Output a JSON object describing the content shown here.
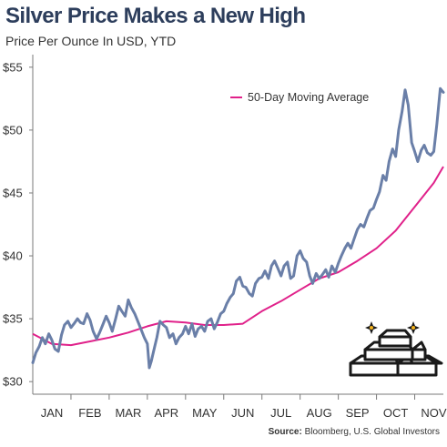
{
  "colors": {
    "price": "#6a7fa8",
    "ma": "#e0218a",
    "axis": "#7a7a7a",
    "title": "#2d3e5c"
  },
  "chart_data": {
    "type": "line",
    "title": "Silver Price Makes a New High",
    "subtitle": "Price Per Ounce In USD, YTD",
    "source_label": "Source:",
    "source_text": "Bloomberg, U.S. Global Investors",
    "ylim": [
      29,
      56
    ],
    "y_ticks": [
      30,
      35,
      40,
      45,
      50,
      55
    ],
    "y_tick_labels": [
      "$30",
      "$35",
      "$40",
      "$45",
      "$50",
      "$55"
    ],
    "x_range": [
      0,
      10.75
    ],
    "x_ticks": [
      0.5,
      1.5,
      2.5,
      3.5,
      4.5,
      5.5,
      6.5,
      7.5,
      8.5,
      9.5,
      10.5
    ],
    "x_tick_labels": [
      "JAN",
      "FEB",
      "MAR",
      "APR",
      "MAY",
      "JUN",
      "JUL",
      "AUG",
      "SEP",
      "OCT",
      "NOV"
    ],
    "legend_position": "top-right",
    "icon": "silver-bars-icon",
    "series": [
      {
        "name": "50-Day Moving Average",
        "x": [
          0,
          0.5,
          1,
          1.5,
          2,
          2.5,
          3,
          3.5,
          4,
          4.5,
          5,
          5.5,
          6,
          6.5,
          7,
          7.5,
          8,
          8.5,
          9,
          9.5,
          10,
          10.5,
          10.75
        ],
        "values": [
          33.8,
          33.0,
          32.9,
          33.2,
          33.5,
          33.9,
          34.4,
          34.8,
          34.7,
          34.5,
          34.5,
          34.6,
          35.6,
          36.4,
          37.3,
          38.2,
          38.7,
          39.6,
          40.6,
          42.0,
          43.9,
          45.8,
          47.1
        ]
      },
      {
        "name": "Silver Price",
        "x": [
          0,
          0.08,
          0.17,
          0.25,
          0.33,
          0.42,
          0.5,
          0.58,
          0.67,
          0.75,
          0.83,
          0.92,
          1.0,
          1.08,
          1.17,
          1.25,
          1.33,
          1.42,
          1.5,
          1.58,
          1.67,
          1.75,
          1.83,
          1.92,
          2.0,
          2.08,
          2.17,
          2.25,
          2.33,
          2.42,
          2.5,
          2.58,
          2.67,
          2.75,
          2.83,
          2.92,
          3.0,
          3.05,
          3.1,
          3.17,
          3.25,
          3.33,
          3.42,
          3.5,
          3.58,
          3.67,
          3.75,
          3.83,
          3.92,
          4.0,
          4.08,
          4.17,
          4.25,
          4.33,
          4.42,
          4.5,
          4.58,
          4.67,
          4.75,
          4.83,
          4.92,
          5.0,
          5.08,
          5.17,
          5.25,
          5.33,
          5.42,
          5.5,
          5.58,
          5.67,
          5.75,
          5.83,
          5.92,
          6.0,
          6.08,
          6.17,
          6.25,
          6.33,
          6.42,
          6.5,
          6.58,
          6.67,
          6.75,
          6.83,
          6.92,
          7.0,
          7.08,
          7.17,
          7.25,
          7.33,
          7.42,
          7.5,
          7.58,
          7.67,
          7.75,
          7.83,
          7.92,
          8.0,
          8.08,
          8.17,
          8.25,
          8.33,
          8.42,
          8.5,
          8.58,
          8.67,
          8.75,
          8.83,
          8.92,
          9.0,
          9.08,
          9.17,
          9.25,
          9.33,
          9.42,
          9.5,
          9.58,
          9.67,
          9.75,
          9.83,
          9.92,
          10.0,
          10.08,
          10.17,
          10.25,
          10.33,
          10.42,
          10.5,
          10.58,
          10.67,
          10.75
        ],
        "values": [
          31.5,
          32.3,
          32.8,
          33.5,
          33.0,
          33.8,
          33.3,
          32.6,
          32.4,
          33.7,
          34.5,
          34.8,
          34.3,
          34.6,
          35.0,
          34.7,
          34.6,
          35.4,
          34.9,
          34.0,
          33.4,
          33.9,
          34.5,
          35.2,
          34.7,
          34.0,
          35.0,
          36.0,
          35.6,
          35.2,
          36.5,
          35.9,
          35.4,
          34.8,
          34.2,
          33.5,
          33.0,
          31.1,
          31.6,
          32.5,
          33.5,
          34.8,
          34.5,
          34.3,
          33.5,
          33.8,
          33.0,
          33.5,
          33.8,
          34.4,
          33.8,
          34.6,
          33.6,
          34.2,
          34.4,
          34.0,
          34.8,
          35.0,
          34.2,
          34.7,
          35.4,
          35.6,
          36.2,
          36.7,
          37.0,
          38.0,
          38.3,
          37.6,
          37.5,
          37.0,
          36.8,
          37.8,
          38.2,
          38.3,
          38.8,
          38.2,
          39.2,
          39.6,
          39.0,
          38.4,
          39.2,
          39.5,
          38.2,
          38.4,
          40.0,
          40.4,
          39.8,
          39.5,
          38.4,
          37.8,
          38.6,
          38.2,
          38.5,
          38.9,
          38.3,
          39.2,
          38.7,
          39.4,
          40.0,
          40.6,
          41.0,
          40.6,
          41.4,
          42.1,
          42.5,
          42.3,
          43.0,
          43.6,
          43.8,
          44.5,
          45.1,
          46.4,
          46.0,
          47.5,
          48.5,
          47.9,
          50.0,
          51.5,
          53.2,
          52.0,
          49.0,
          48.3,
          47.5,
          48.4,
          48.8,
          48.2,
          48.0,
          48.3,
          50.5,
          53.3,
          53.0
        ]
      }
    ]
  }
}
